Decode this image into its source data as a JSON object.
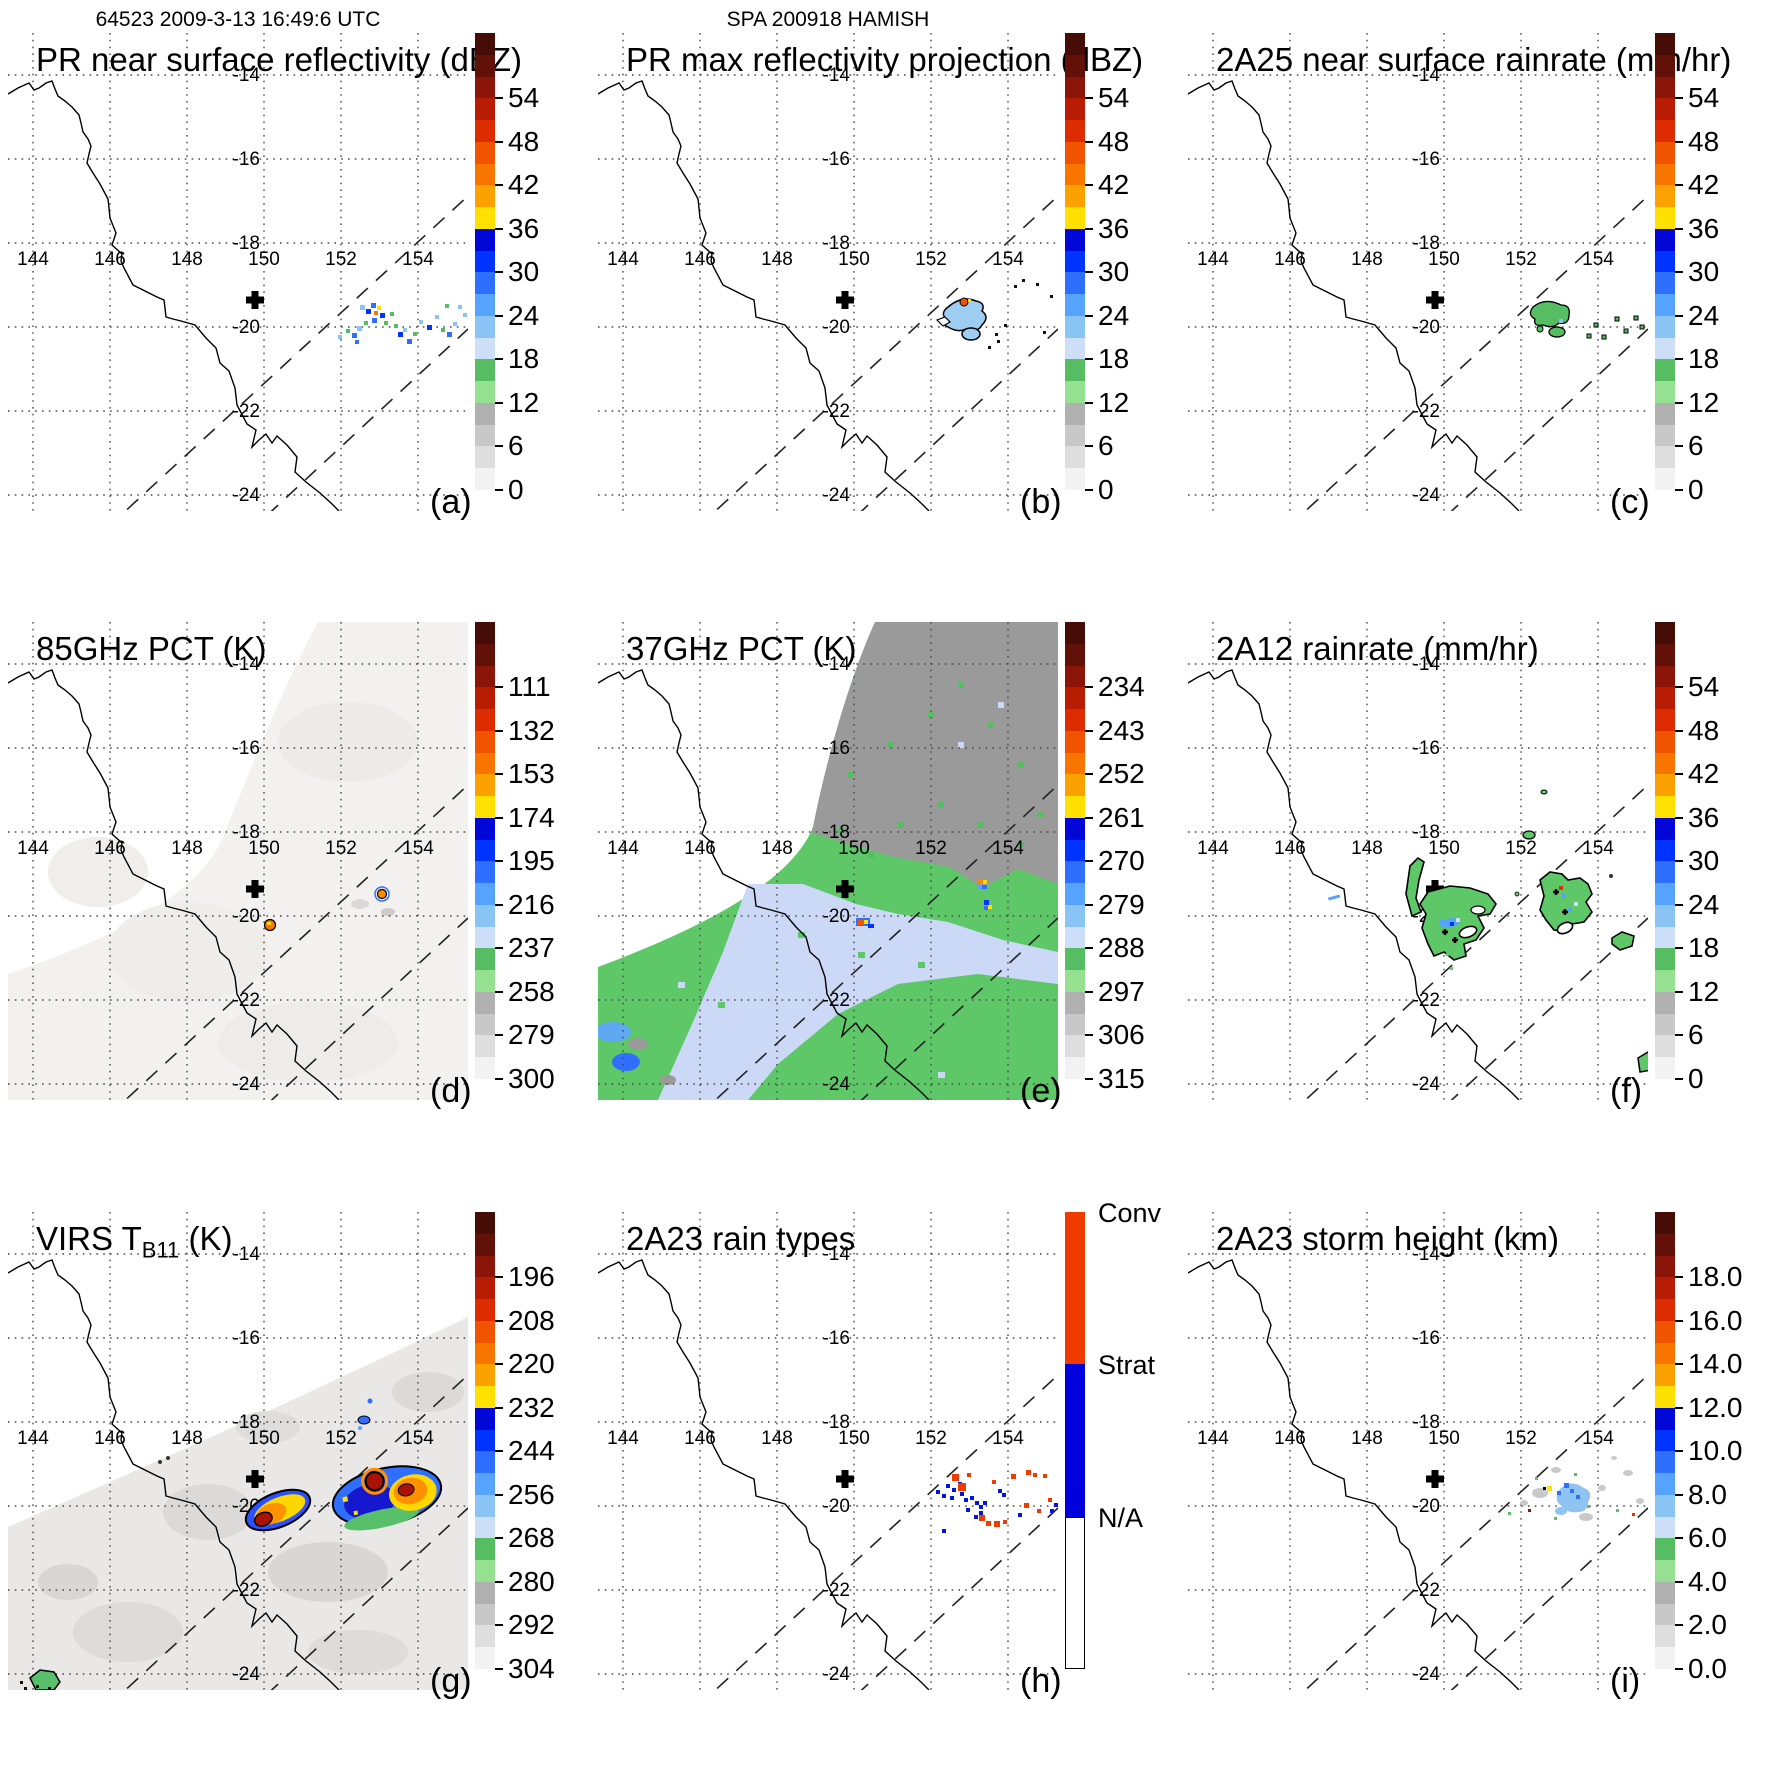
{
  "header": {
    "orbit_time": "64523 2009-3-13 16:49:6 UTC",
    "storm_label": "SPA 200918 HAMISH"
  },
  "map": {
    "lon_labels": [
      "144",
      "146",
      "148",
      "150",
      "152",
      "154"
    ],
    "lat_labels": [
      "-14",
      "-16",
      "-18",
      "-20",
      "-22",
      "-24"
    ],
    "cross_marker": "+"
  },
  "panels": {
    "a": {
      "title": "PR near surface reflectivity (dBZ)",
      "letter": "(a)"
    },
    "b": {
      "title": "PR max reflectivity projection (dBZ)",
      "letter": "(b)"
    },
    "c": {
      "title": "2A25 near surface rainrate (mm/hr)",
      "letter": "(c)"
    },
    "d": {
      "title": "85GHz PCT (K)",
      "letter": "(d)"
    },
    "e": {
      "title": "37GHz PCT (K)",
      "letter": "(e)"
    },
    "f": {
      "title": "2A12 rainrate (mm/hr)",
      "letter": "(f)"
    },
    "g": {
      "title": "VIRS T",
      "title_sub": "B11",
      "title_end": " (K)",
      "letter": "(g)"
    },
    "h": {
      "title": "2A23 rain types",
      "letter": "(h)"
    },
    "i": {
      "title": "2A23 storm height (km)",
      "letter": "(i)"
    }
  },
  "palettes": {
    "rainbow": [
      "#460d06",
      "#611108",
      "#8c150a",
      "#b81c03",
      "#dd2d00",
      "#f05400",
      "#f87600",
      "#fca200",
      "#ffe000",
      "#0007d6",
      "#0033ff",
      "#2f6fff",
      "#55a2ff",
      "#8ac4f5",
      "#cddff8",
      "#56bd62",
      "#96e092",
      "#b0b0b0",
      "#c8c8c8",
      "#dedede",
      "#f2f2f2"
    ]
  },
  "colorbars": {
    "dbz": {
      "type": "continuous",
      "ticks": [
        "54",
        "48",
        "42",
        "36",
        "30",
        "24",
        "18",
        "12",
        "6",
        "0"
      ]
    },
    "pct85": {
      "type": "continuous",
      "ticks": [
        "111",
        "132",
        "153",
        "174",
        "195",
        "216",
        "237",
        "258",
        "279",
        "300"
      ]
    },
    "pct37": {
      "type": "continuous",
      "ticks": [
        "234",
        "243",
        "252",
        "261",
        "270",
        "279",
        "288",
        "297",
        "306",
        "315"
      ]
    },
    "tb11": {
      "type": "continuous",
      "ticks": [
        "196",
        "208",
        "220",
        "232",
        "244",
        "256",
        "268",
        "280",
        "292",
        "304"
      ]
    },
    "height": {
      "type": "continuous",
      "ticks": [
        "18.0",
        "16.0",
        "14.0",
        "12.0",
        "10.0",
        "8.0",
        "6.0",
        "4.0",
        "2.0",
        "0.0"
      ]
    },
    "raintype": {
      "type": "categorical",
      "labels": [
        "Conv",
        "Strat",
        "N/A"
      ],
      "colors": [
        "#f03b00",
        "#0000dd",
        "#ffffff"
      ]
    }
  },
  "chart_data": [
    {
      "panel": "a",
      "type": "heatmap",
      "title": "PR near surface reflectivity (dBZ)",
      "units": "dBZ",
      "colorbar_ticks": [
        54,
        48,
        42,
        36,
        30,
        24,
        18,
        12,
        6,
        0
      ],
      "features": "scattered 18-36 dBZ echoes near 152.5-155E, 19.5-20.5S inside PR swath"
    },
    {
      "panel": "b",
      "type": "heatmap",
      "title": "PR max reflectivity projection (dBZ)",
      "units": "dBZ",
      "colorbar_ticks": [
        54,
        48,
        42,
        36,
        30,
        24,
        18,
        12,
        6,
        0
      ],
      "features": "outlined 20-30 dBZ blobs near 153E 19.8S with small 42-48 dBZ convective core"
    },
    {
      "panel": "c",
      "type": "heatmap",
      "title": "2A25 near surface rainrate (mm/hr)",
      "units": "mm/hr",
      "colorbar_ticks": [
        54,
        48,
        42,
        36,
        30,
        24,
        18,
        12,
        6,
        0
      ],
      "features": "light (6-18 mm/hr) outlined rain cells near 153E 19.8S"
    },
    {
      "panel": "d",
      "type": "heatmap",
      "title": "85GHz PCT (K)",
      "units": "K",
      "colorbar_ticks": [
        111,
        132,
        153,
        174,
        195,
        216,
        237,
        258,
        279,
        300
      ],
      "features": "warm (~280-300K) background swath; two small depressed-PCT spots near 150.2E 20.2S and 153E 19.6S"
    },
    {
      "panel": "e",
      "type": "heatmap",
      "title": "37GHz PCT (K)",
      "units": "K",
      "colorbar_ticks": [
        234,
        243,
        252,
        261,
        270,
        279,
        288,
        297,
        306,
        315
      ],
      "features": "gray ~300K sector NE, green ~288K and pale-blue ~283K bands SW; cold spots at 150.2E 20.2S and 153E 19.5S"
    },
    {
      "panel": "f",
      "type": "heatmap",
      "title": "2A12 rainrate (mm/hr)",
      "units": "mm/hr",
      "colorbar_ticks": [
        54,
        48,
        42,
        36,
        30,
        24,
        18,
        12,
        6,
        0
      ],
      "features": "outlined 6-12 mm/hr regions around 149.5-151E 19-21S and 152.5-153.7E 19-20.5S with embedded 18-30 mm/hr pixels"
    },
    {
      "panel": "g",
      "type": "heatmap",
      "title": "VIRS TB11 (K)",
      "units": "K",
      "colorbar_ticks": [
        196,
        208,
        220,
        232,
        244,
        256,
        268,
        280,
        292,
        304
      ],
      "features": "two cold cloud shields: ellipse near 150.3E 20.1S (cores <208K) and large complex near 153.2E 19.8S (cores <208K)"
    },
    {
      "panel": "h",
      "type": "categorical-map",
      "title": "2A23 rain types",
      "categories": [
        "Conv",
        "Strat",
        "N/A"
      ],
      "features": "mixed convective (red) and stratiform (blue) pixels between 152.5-155E, 19.3-20.7S"
    },
    {
      "panel": "i",
      "type": "heatmap",
      "title": "2A23 storm height (km)",
      "units": "km",
      "colorbar_ticks": [
        18,
        16,
        14,
        12,
        10,
        8,
        6,
        4,
        2,
        0
      ],
      "features": "storm tops mostly 6-10 km near 153-154E 19.5-20.3S, one ~12 km pixel"
    }
  ]
}
